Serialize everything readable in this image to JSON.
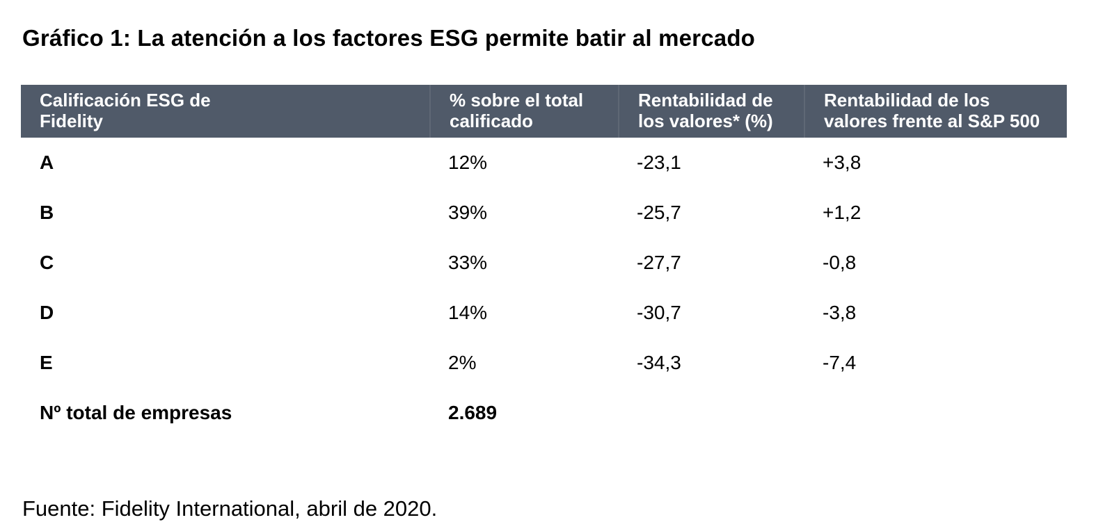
{
  "title": "Gráfico 1: La atención a los factores ESG permite batir al mercado",
  "source": "Fuente: Fidelity International, abril de 2020.",
  "colors": {
    "header_bg": "#505a69",
    "header_divider": "#5f6875",
    "header_text": "#ffffff",
    "body_text": "#000000",
    "page_bg": "#ffffff"
  },
  "chart_data": {
    "type": "table",
    "title": "Gráfico 1: La atención a los factores ESG permite batir al mercado",
    "columns": [
      "Calificación ESG de\nFidelity",
      "% sobre el total\ncalificado",
      "Rentabilidad de\nlos valores* (%)",
      "Rentabilidad de los\nvalores frente al S&P 500"
    ],
    "rows": [
      {
        "rating": "A",
        "pct_of_total": "12%",
        "return_pct": "-23,1",
        "vs_sp500": "+3,8"
      },
      {
        "rating": "B",
        "pct_of_total": "39%",
        "return_pct": "-25,7",
        "vs_sp500": "+1,2"
      },
      {
        "rating": "C",
        "pct_of_total": "33%",
        "return_pct": "-27,7",
        "vs_sp500": "-0,8"
      },
      {
        "rating": "D",
        "pct_of_total": "14%",
        "return_pct": "-30,7",
        "vs_sp500": "-3,8"
      },
      {
        "rating": "E",
        "pct_of_total": "2%",
        "return_pct": "-34,3",
        "vs_sp500": "-7,4"
      }
    ],
    "total_row": {
      "label": "Nº total de empresas",
      "value": "2.689"
    }
  }
}
